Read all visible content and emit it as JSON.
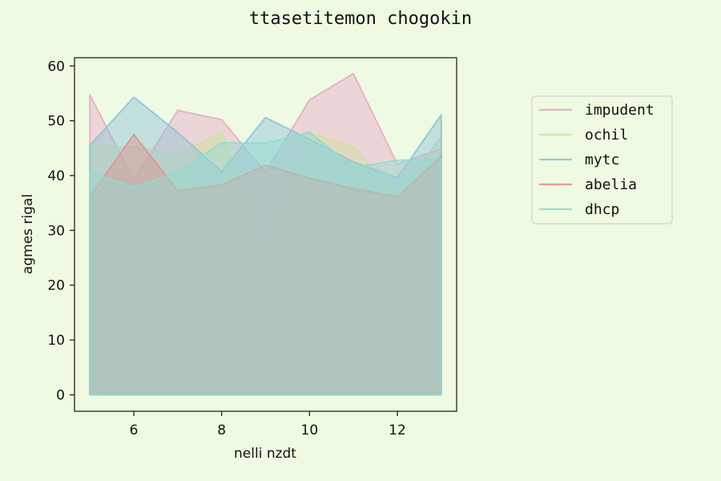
{
  "chart_data": {
    "type": "area",
    "title": "ttasetitemon chogokin",
    "xlabel": "nelli nzdt",
    "ylabel": "agmes rigal",
    "xlim": [
      4.65,
      13.35
    ],
    "ylim": [
      -3,
      61.5
    ],
    "xticks": [
      6,
      8,
      10,
      12
    ],
    "yticks": [
      0,
      10,
      20,
      30,
      40,
      50,
      60
    ],
    "grid": false,
    "legend_position": "right",
    "x": [
      5,
      6,
      7,
      8,
      9,
      10,
      11,
      12,
      13
    ],
    "series": [
      {
        "name": "impudent",
        "color": "#e8a9c8",
        "values": [
          54.7,
          39.2,
          51.9,
          50.2,
          40.6,
          53.8,
          58.6,
          42.1,
          44.9
        ]
      },
      {
        "name": "ochil",
        "color": "#cfe0a0",
        "values": [
          45.3,
          45.2,
          43.9,
          48.0,
          24.7,
          47.8,
          45.3,
          36.3,
          47.1
        ]
      },
      {
        "name": "mytc",
        "color": "#8cc2d8",
        "values": [
          45.5,
          54.3,
          47.9,
          40.7,
          50.6,
          46.6,
          42.5,
          39.6,
          51.1
        ]
      },
      {
        "name": "abelia",
        "color": "#e09090",
        "values": [
          36.1,
          47.5,
          37.2,
          38.3,
          41.9,
          39.5,
          37.6,
          36.1,
          43.5
        ]
      },
      {
        "name": "dhcp",
        "color": "#8edcd0",
        "values": [
          40.6,
          37.9,
          40.6,
          46.0,
          45.9,
          47.9,
          41.5,
          42.8,
          43.1
        ]
      }
    ]
  }
}
